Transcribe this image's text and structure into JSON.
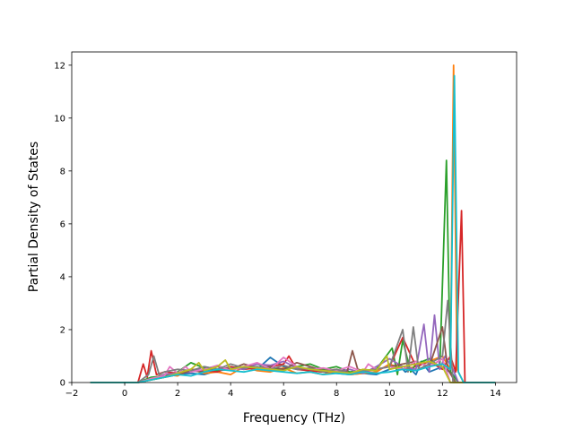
{
  "chart_data": {
    "type": "line",
    "title": "",
    "xlabel": "Frequency (THz)",
    "ylabel": "Partial Density of States",
    "xlim": [
      -2.0,
      14.8
    ],
    "ylim": [
      0,
      12.5
    ],
    "xticks": [
      -2,
      0,
      2,
      4,
      6,
      8,
      10,
      12,
      14
    ],
    "yticks": [
      0,
      2,
      4,
      6,
      8,
      10,
      12
    ],
    "grid": false,
    "legend": "none",
    "series_colors": [
      "#1f77b4",
      "#ff7f0e",
      "#2ca02c",
      "#d62728",
      "#9467bd",
      "#8c564b",
      "#e377c2",
      "#7f7f7f",
      "#bcbd22",
      "#17becf"
    ],
    "series": [
      {
        "color": "#1f77b4",
        "x": [
          -1.3,
          0.5,
          1.0,
          1.5,
          2.0,
          2.5,
          3.0,
          3.5,
          4.0,
          4.5,
          5.0,
          5.5,
          6.0,
          6.5,
          7.0,
          7.5,
          8.0,
          8.5,
          9.0,
          9.5,
          10.0,
          10.4,
          10.6,
          10.8,
          11.0,
          11.2,
          11.5,
          12.0,
          12.4,
          12.6,
          13.0,
          14.0
        ],
        "y": [
          0,
          0,
          0.1,
          0.2,
          0.3,
          0.35,
          0.3,
          0.45,
          0.5,
          0.55,
          0.5,
          0.95,
          0.6,
          0.5,
          0.45,
          0.4,
          0.35,
          0.3,
          0.35,
          0.3,
          0.5,
          0.6,
          0.4,
          0.5,
          0.3,
          0.8,
          0.4,
          0.6,
          0.3,
          0,
          0,
          0
        ]
      },
      {
        "color": "#ff7f0e",
        "x": [
          -1.3,
          0.5,
          1.0,
          1.5,
          2.0,
          2.5,
          3.0,
          3.5,
          4.0,
          4.5,
          5.0,
          5.5,
          6.0,
          6.5,
          7.0,
          7.5,
          8.0,
          8.5,
          9.0,
          9.5,
          10.0,
          10.5,
          11.0,
          11.5,
          12.0,
          12.3,
          12.42,
          12.55,
          12.8,
          14.0
        ],
        "y": [
          0,
          0,
          0.15,
          0.3,
          0.25,
          0.5,
          0.35,
          0.4,
          0.3,
          0.6,
          0.45,
          0.4,
          0.55,
          0.35,
          0.4,
          0.3,
          0.45,
          0.3,
          0.35,
          0.4,
          0.7,
          0.5,
          0.6,
          0.8,
          1.0,
          0.5,
          12.0,
          0.5,
          0,
          0
        ]
      },
      {
        "color": "#2ca02c",
        "x": [
          -1.3,
          0.5,
          1.0,
          1.5,
          2.0,
          2.5,
          3.0,
          3.5,
          4.0,
          4.5,
          5.0,
          5.5,
          6.0,
          6.5,
          7.0,
          7.5,
          8.0,
          8.5,
          9.0,
          9.5,
          10.1,
          10.3,
          10.5,
          10.8,
          11.0,
          11.5,
          11.9,
          12.15,
          12.3,
          12.6,
          14.0
        ],
        "y": [
          0,
          0,
          0.2,
          0.25,
          0.4,
          0.75,
          0.55,
          0.45,
          0.6,
          0.5,
          0.7,
          0.55,
          0.5,
          0.6,
          0.7,
          0.5,
          0.6,
          0.4,
          0.45,
          0.5,
          1.3,
          0.3,
          1.6,
          0.4,
          0.7,
          0.9,
          0.6,
          8.4,
          0.4,
          0,
          0
        ]
      },
      {
        "color": "#d62728",
        "x": [
          -1.3,
          0.5,
          0.7,
          0.85,
          1.0,
          1.2,
          1.5,
          2.0,
          2.5,
          3.0,
          3.5,
          4.0,
          4.5,
          5.0,
          5.5,
          6.0,
          6.2,
          6.5,
          7.0,
          7.5,
          8.0,
          8.5,
          9.0,
          9.5,
          10.0,
          10.5,
          11.0,
          11.5,
          12.0,
          12.3,
          12.5,
          12.72,
          12.85,
          14.0
        ],
        "y": [
          0,
          0,
          0.7,
          0.2,
          1.2,
          0.3,
          0.4,
          0.35,
          0.5,
          0.45,
          0.4,
          0.6,
          0.5,
          0.55,
          0.6,
          0.7,
          1.0,
          0.5,
          0.45,
          0.4,
          0.5,
          0.3,
          0.4,
          0.5,
          0.6,
          1.7,
          0.6,
          0.8,
          0.5,
          1.0,
          0.4,
          6.5,
          0,
          0
        ]
      },
      {
        "color": "#9467bd",
        "x": [
          -1.3,
          0.5,
          1.0,
          1.5,
          2.0,
          2.5,
          3.0,
          3.5,
          4.0,
          4.5,
          5.0,
          5.5,
          6.0,
          6.5,
          7.0,
          7.5,
          8.0,
          8.5,
          9.0,
          9.5,
          10.0,
          10.5,
          11.0,
          11.3,
          11.5,
          11.7,
          11.9,
          12.1,
          12.4,
          12.6,
          14.0
        ],
        "y": [
          0,
          0,
          0.1,
          0.3,
          0.35,
          0.4,
          0.6,
          0.5,
          0.55,
          0.5,
          0.7,
          0.65,
          0.8,
          0.55,
          0.5,
          0.45,
          0.4,
          0.5,
          0.35,
          0.6,
          0.9,
          0.6,
          0.5,
          2.2,
          0.4,
          2.55,
          0.5,
          1.0,
          0.5,
          0,
          0
        ]
      },
      {
        "color": "#8c564b",
        "x": [
          -1.3,
          0.5,
          1.0,
          1.5,
          2.0,
          2.5,
          3.0,
          3.5,
          4.0,
          4.5,
          5.0,
          5.5,
          6.0,
          6.5,
          7.0,
          7.5,
          8.0,
          8.4,
          8.6,
          8.8,
          9.0,
          9.5,
          10.0,
          10.5,
          11.0,
          11.5,
          12.0,
          12.2,
          12.5,
          14.0
        ],
        "y": [
          0,
          0,
          0.1,
          0.2,
          0.3,
          0.45,
          0.4,
          0.6,
          0.5,
          0.7,
          0.55,
          0.6,
          0.5,
          0.75,
          0.6,
          0.45,
          0.5,
          0.4,
          1.2,
          0.5,
          0.45,
          0.5,
          0.6,
          0.7,
          0.8,
          0.6,
          2.1,
          0.5,
          0,
          0
        ]
      },
      {
        "color": "#e377c2",
        "x": [
          -1.3,
          0.5,
          1.0,
          1.5,
          1.7,
          2.0,
          2.3,
          2.5,
          3.0,
          3.5,
          4.0,
          4.5,
          5.0,
          5.5,
          6.0,
          6.5,
          7.0,
          7.5,
          8.0,
          8.5,
          9.0,
          9.2,
          9.5,
          10.0,
          10.5,
          11.0,
          11.5,
          12.0,
          12.3,
          14.0
        ],
        "y": [
          0,
          0,
          0.15,
          0.25,
          0.6,
          0.35,
          0.6,
          0.4,
          0.5,
          0.65,
          0.45,
          0.6,
          0.75,
          0.5,
          0.95,
          0.6,
          0.5,
          0.55,
          0.45,
          0.6,
          0.4,
          0.7,
          0.5,
          0.6,
          0.5,
          0.8,
          0.6,
          0.9,
          0,
          0
        ]
      },
      {
        "color": "#7f7f7f",
        "x": [
          -1.3,
          0.5,
          0.9,
          1.1,
          1.3,
          1.5,
          2.0,
          2.5,
          3.0,
          3.5,
          4.0,
          4.5,
          5.0,
          5.5,
          6.0,
          6.5,
          7.0,
          7.5,
          8.0,
          8.5,
          9.0,
          9.5,
          10.0,
          10.5,
          10.7,
          10.9,
          11.1,
          11.5,
          12.0,
          12.2,
          12.4,
          14.0
        ],
        "y": [
          0,
          0,
          0.3,
          1.0,
          0.3,
          0.4,
          0.5,
          0.45,
          0.6,
          0.5,
          0.7,
          0.55,
          0.6,
          0.5,
          0.65,
          0.5,
          0.55,
          0.4,
          0.5,
          0.35,
          0.45,
          0.5,
          0.6,
          2.0,
          0.4,
          2.1,
          0.5,
          0.7,
          1.0,
          3.1,
          0,
          0
        ]
      },
      {
        "color": "#bcbd22",
        "x": [
          -1.3,
          0.5,
          1.0,
          1.5,
          2.0,
          2.5,
          2.8,
          3.0,
          3.5,
          3.8,
          4.0,
          4.5,
          5.0,
          5.5,
          6.0,
          6.5,
          7.0,
          7.5,
          8.0,
          8.5,
          9.0,
          9.5,
          9.9,
          10.0,
          10.5,
          11.0,
          11.5,
          12.0,
          12.3,
          14.0
        ],
        "y": [
          0,
          0,
          0.1,
          0.2,
          0.35,
          0.5,
          0.75,
          0.45,
          0.6,
          0.85,
          0.5,
          0.6,
          0.55,
          0.5,
          0.45,
          0.6,
          0.5,
          0.45,
          0.4,
          0.35,
          0.5,
          0.45,
          1.0,
          0.5,
          0.6,
          0.7,
          0.8,
          0.6,
          0,
          0
        ]
      },
      {
        "color": "#17becf",
        "x": [
          -1.3,
          0.5,
          1.0,
          1.5,
          2.0,
          2.5,
          3.0,
          3.5,
          4.0,
          4.5,
          5.0,
          5.5,
          6.0,
          6.5,
          7.0,
          7.5,
          8.0,
          8.5,
          9.0,
          9.5,
          10.0,
          10.5,
          11.0,
          11.5,
          12.0,
          12.3,
          12.45,
          12.6,
          12.8,
          14.0
        ],
        "y": [
          0,
          0,
          0.1,
          0.2,
          0.3,
          0.25,
          0.4,
          0.5,
          0.45,
          0.4,
          0.5,
          0.45,
          0.4,
          0.35,
          0.4,
          0.3,
          0.35,
          0.3,
          0.4,
          0.35,
          0.4,
          0.5,
          0.45,
          0.6,
          0.7,
          0.5,
          11.6,
          0.4,
          0,
          0
        ]
      }
    ]
  }
}
